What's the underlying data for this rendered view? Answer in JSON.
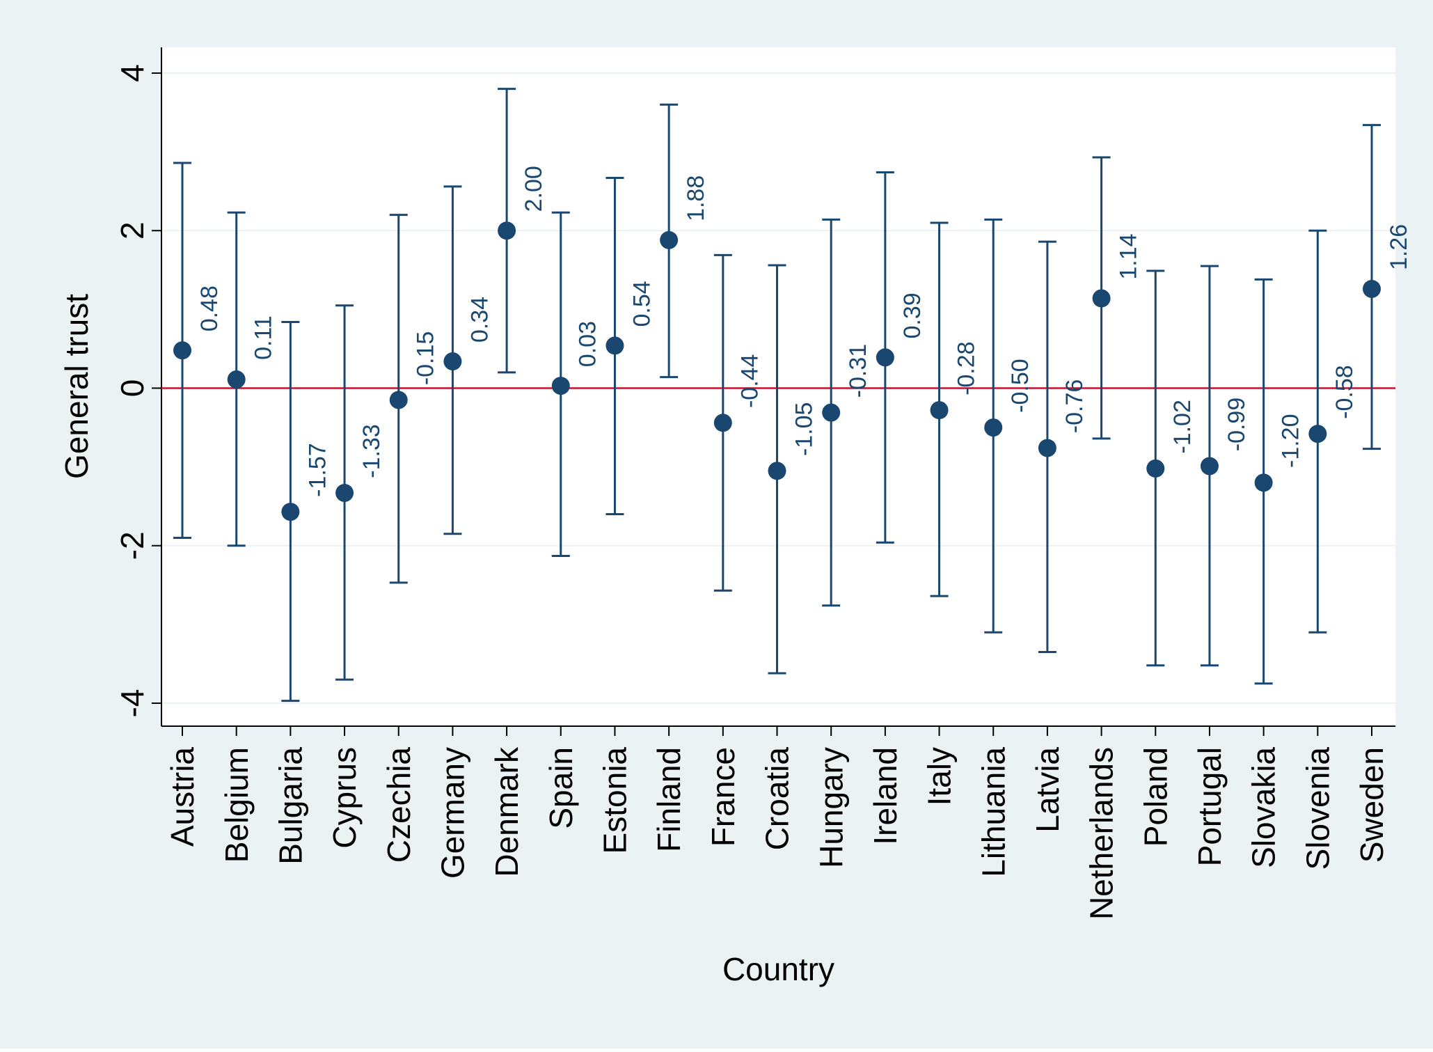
{
  "chart_data": {
    "type": "scatter",
    "subtype": "point estimates with confidence intervals",
    "title": "",
    "xlabel": "Country",
    "ylabel": "General trust",
    "ylim": [
      -4.3,
      4.3
    ],
    "yticks": [
      -4,
      -2,
      0,
      2,
      4
    ],
    "ytick_labels": [
      "-4",
      "-2",
      "0",
      "2",
      "4"
    ],
    "reference_line": {
      "y": 0,
      "color": "#c8102e"
    },
    "grid": true,
    "colors": {
      "outer_background": "#eaf2f3",
      "plot_background": "#ffffff",
      "gridline": "#eaf2f3",
      "series": "#1a476f",
      "reference_line": "#c8102e"
    },
    "categories": [
      "Austria",
      "Belgium",
      "Bulgaria",
      "Cyprus",
      "Czechia",
      "Germany",
      "Denmark",
      "Spain",
      "Estonia",
      "Finland",
      "France",
      "Croatia",
      "Hungary",
      "Ireland",
      "Italy",
      "Lithuania",
      "Latvia",
      "Netherlands",
      "Poland",
      "Portugal",
      "Slovakia",
      "Slovenia",
      "Sweden"
    ],
    "values": [
      0.48,
      0.11,
      -1.57,
      -1.33,
      -0.15,
      0.34,
      2.0,
      0.03,
      0.54,
      1.88,
      -0.44,
      -1.05,
      -0.31,
      0.39,
      -0.28,
      -0.5,
      -0.76,
      1.14,
      -1.02,
      -0.99,
      -1.2,
      -0.58,
      1.26
    ],
    "value_labels": [
      "0.48",
      "0.11",
      "-1.57",
      "-1.33",
      "-0.15",
      "0.34",
      "2.00",
      "0.03",
      "0.54",
      "1.88",
      "-0.44",
      "-1.05",
      "-0.31",
      "0.39",
      "-0.28",
      "-0.50",
      "-0.76",
      "1.14",
      "-1.02",
      "-0.99",
      "-1.20",
      "-0.58",
      "1.26"
    ],
    "ci_lower": [
      -1.9,
      -2.0,
      -3.97,
      -3.7,
      -2.47,
      -1.85,
      0.2,
      -2.13,
      -1.6,
      0.14,
      -2.57,
      -3.62,
      -2.76,
      -1.96,
      -2.64,
      -3.1,
      -3.35,
      -0.64,
      -3.52,
      -3.52,
      -3.75,
      -3.1,
      -0.77
    ],
    "ci_upper": [
      2.86,
      2.23,
      0.84,
      1.05,
      2.2,
      2.56,
      3.8,
      2.23,
      2.67,
      3.6,
      1.69,
      1.56,
      2.14,
      2.74,
      2.1,
      2.14,
      1.86,
      2.93,
      1.49,
      1.55,
      1.38,
      2.0,
      3.34
    ]
  }
}
